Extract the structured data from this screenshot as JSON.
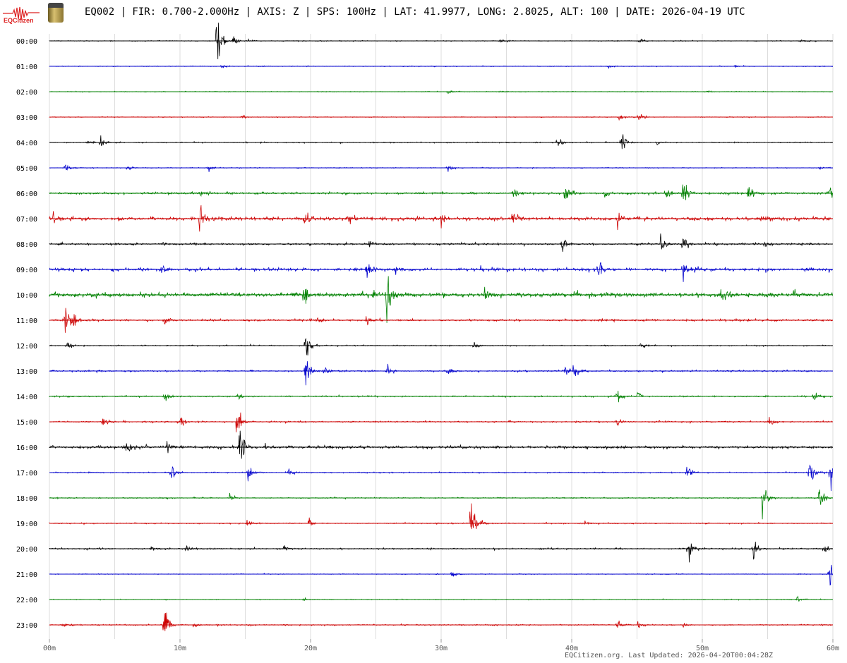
{
  "header": {
    "logo_text": "EQCitizen",
    "title": "EQ002 | FIR: 0.700-2.000Hz | AXIS: Z | SPS: 100Hz | LAT: 41.9977, LONG: 2.8025, ALT: 100 | DATE: 2026-04-19 UTC"
  },
  "footer": {
    "text": "EQCitizen.org. Last Updated: 2026-04-20T00:04:28Z"
  },
  "chart_data": {
    "type": "helicorder",
    "xlabel": "",
    "ylabel": "",
    "xlim": [
      0,
      60
    ],
    "x_ticks": [
      "00m",
      "10m",
      "20m",
      "30m",
      "40m",
      "50m",
      "60m"
    ],
    "x_tick_values": [
      0,
      10,
      20,
      30,
      40,
      50,
      60
    ],
    "grid_minutes": 5,
    "colors": [
      "#000000",
      "#0000cc",
      "#008000",
      "#cc0000"
    ],
    "rows": [
      {
        "label": "00:00",
        "noise": 0.02,
        "events": [
          [
            12.8,
            2.2
          ],
          [
            14.1,
            0.25
          ],
          [
            15.1,
            0.15
          ],
          [
            34.5,
            0.1
          ],
          [
            45.2,
            0.12
          ],
          [
            57.5,
            0.08
          ]
        ]
      },
      {
        "label": "01:00",
        "noise": 0.02,
        "events": [
          [
            13.2,
            0.15
          ],
          [
            42.8,
            0.1
          ],
          [
            52.5,
            0.08
          ]
        ]
      },
      {
        "label": "02:00",
        "noise": 0.02,
        "events": [
          [
            30.5,
            0.2
          ],
          [
            34.5,
            0.08
          ],
          [
            50.5,
            0.08
          ]
        ]
      },
      {
        "label": "03:00",
        "noise": 0.02,
        "events": [
          [
            14.8,
            0.1
          ],
          [
            43.6,
            0.22
          ],
          [
            45.1,
            0.3
          ]
        ]
      },
      {
        "label": "04:00",
        "noise": 0.03,
        "events": [
          [
            2.9,
            0.15
          ],
          [
            3.9,
            0.5
          ],
          [
            38.9,
            0.4
          ],
          [
            43.8,
            0.7
          ],
          [
            46.5,
            0.15
          ]
        ]
      },
      {
        "label": "05:00",
        "noise": 0.02,
        "events": [
          [
            1.2,
            0.3
          ],
          [
            6.0,
            0.15
          ],
          [
            12.2,
            0.15
          ],
          [
            30.5,
            0.2
          ],
          [
            59,
            0.08
          ]
        ]
      },
      {
        "label": "06:00",
        "noise": 0.06,
        "events": [
          [
            11.5,
            0.2
          ],
          [
            35.5,
            0.4
          ],
          [
            39.5,
            0.8
          ],
          [
            42.5,
            0.2
          ],
          [
            47.2,
            0.5
          ],
          [
            48.5,
            0.9
          ],
          [
            53.5,
            0.6
          ],
          [
            59.8,
            0.5
          ]
        ]
      },
      {
        "label": "07:00",
        "noise": 0.1,
        "events": [
          [
            0.3,
            0.3
          ],
          [
            11.5,
            0.8
          ],
          [
            19.5,
            0.5
          ],
          [
            22.8,
            0.35
          ],
          [
            30,
            0.3
          ],
          [
            35.5,
            0.3
          ],
          [
            43.5,
            0.5
          ],
          [
            54.5,
            0.3
          ]
        ]
      },
      {
        "label": "08:00",
        "noise": 0.05,
        "events": [
          [
            8.5,
            0.15
          ],
          [
            24.5,
            0.2
          ],
          [
            39.3,
            0.55
          ],
          [
            46.8,
            0.45
          ],
          [
            48.5,
            0.55
          ],
          [
            54.8,
            0.35
          ]
        ]
      },
      {
        "label": "09:00",
        "noise": 0.08,
        "events": [
          [
            8.5,
            0.35
          ],
          [
            24.3,
            0.6
          ],
          [
            26.5,
            0.3
          ],
          [
            42,
            0.5
          ],
          [
            48.5,
            0.6
          ],
          [
            57.8,
            0.2
          ]
        ]
      },
      {
        "label": "10:00",
        "noise": 0.12,
        "events": [
          [
            19.5,
            0.7
          ],
          [
            24.8,
            0.4
          ],
          [
            25.8,
            1.6
          ],
          [
            33.3,
            0.5
          ],
          [
            51.5,
            0.5
          ],
          [
            57,
            0.4
          ]
        ]
      },
      {
        "label": "11:00",
        "noise": 0.05,
        "events": [
          [
            1.2,
            1.1
          ],
          [
            1.8,
            0.4
          ],
          [
            8.8,
            0.3
          ],
          [
            20.5,
            0.2
          ],
          [
            24.3,
            0.4
          ],
          [
            43,
            0.15
          ]
        ]
      },
      {
        "label": "12:00",
        "noise": 0.03,
        "events": [
          [
            1.3,
            0.25
          ],
          [
            19.6,
            1.1
          ],
          [
            32.5,
            0.2
          ],
          [
            45.3,
            0.2
          ]
        ]
      },
      {
        "label": "13:00",
        "noise": 0.04,
        "events": [
          [
            19.6,
            0.9
          ],
          [
            21,
            0.3
          ],
          [
            25.8,
            0.4
          ],
          [
            30.5,
            0.3
          ],
          [
            39.5,
            0.4
          ],
          [
            40.2,
            0.6
          ]
        ]
      },
      {
        "label": "14:00",
        "noise": 0.04,
        "events": [
          [
            8.8,
            0.3
          ],
          [
            14.5,
            0.15
          ],
          [
            43.5,
            0.35
          ],
          [
            45,
            0.3
          ],
          [
            58.5,
            0.3
          ]
        ]
      },
      {
        "label": "15:00",
        "noise": 0.04,
        "events": [
          [
            4.1,
            0.3
          ],
          [
            10,
            0.3
          ],
          [
            14.4,
            1.1
          ],
          [
            43.4,
            0.3
          ],
          [
            55.1,
            0.3
          ]
        ]
      },
      {
        "label": "16:00",
        "noise": 0.07,
        "events": [
          [
            5.8,
            0.55
          ],
          [
            14.5,
            1.4
          ],
          [
            9.0,
            0.3
          ],
          [
            16.5,
            0.2
          ]
        ]
      },
      {
        "label": "17:00",
        "noise": 0.03,
        "events": [
          [
            9.3,
            0.45
          ],
          [
            15.2,
            0.45
          ],
          [
            18.3,
            0.3
          ],
          [
            48.8,
            0.35
          ],
          [
            58.2,
            0.8
          ],
          [
            59.8,
            0.9
          ]
        ]
      },
      {
        "label": "18:00",
        "noise": 0.03,
        "events": [
          [
            13.8,
            0.2
          ],
          [
            54.6,
            1.0
          ],
          [
            58.9,
            1.0
          ]
        ]
      },
      {
        "label": "19:00",
        "noise": 0.03,
        "events": [
          [
            15.1,
            0.35
          ],
          [
            19.9,
            0.35
          ],
          [
            32.3,
            2.5
          ],
          [
            41,
            0.15
          ]
        ]
      },
      {
        "label": "20:00",
        "noise": 0.04,
        "events": [
          [
            7.8,
            0.2
          ],
          [
            10.5,
            0.3
          ],
          [
            18,
            0.15
          ],
          [
            48.9,
            0.9
          ],
          [
            53.9,
            0.6
          ],
          [
            59.3,
            0.3
          ]
        ]
      },
      {
        "label": "21:00",
        "noise": 0.02,
        "events": [
          [
            30.8,
            0.3
          ],
          [
            59.7,
            0.8
          ]
        ]
      },
      {
        "label": "22:00",
        "noise": 0.02,
        "events": [
          [
            19.5,
            0.1
          ],
          [
            57.2,
            0.25
          ]
        ]
      },
      {
        "label": "23:00",
        "noise": 0.03,
        "events": [
          [
            1.0,
            0.15
          ],
          [
            8.8,
            0.9
          ],
          [
            11,
            0.2
          ],
          [
            43.5,
            0.25
          ],
          [
            45,
            0.2
          ],
          [
            48.5,
            0.1
          ]
        ]
      }
    ]
  }
}
